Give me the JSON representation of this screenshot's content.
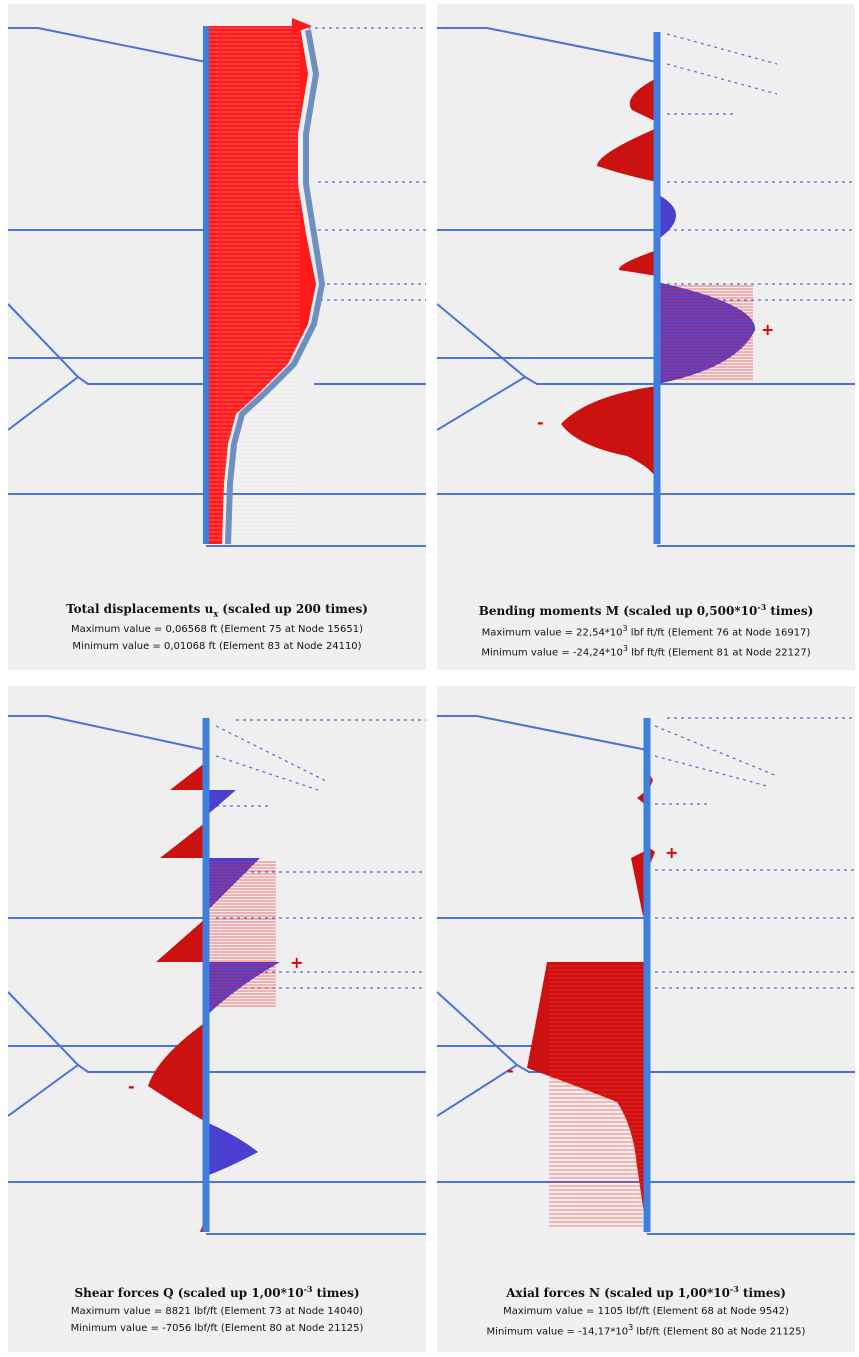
{
  "panels": [
    {
      "title_main": "Total displacements u",
      "title_sub": "x",
      "title_tail": " (scaled up 200 times)",
      "max_label": "Maximum value = 0,06568 ft (Element 75 at Node 15651)",
      "min_label": "Minimum value = 0,01068 ft (Element 83 at Node 24110)"
    },
    {
      "title_main": "Bending moments M (scaled up 0,500*10",
      "title_sup": "-3",
      "title_tail": " times)",
      "max_pre": "Maximum value = 22,54*10",
      "max_sup": "3",
      "max_post": " lbf ft/ft (Element 76 at Node 16917)",
      "min_pre": "Minimum value = -24,24*10",
      "min_sup": "3",
      "min_post": " lbf ft/ft (Element 81 at Node 22127)",
      "plus": "+",
      "minus": "-"
    },
    {
      "title_main": "Shear forces Q (scaled up 1,00*10",
      "title_sup": "-3",
      "title_tail": " times)",
      "max_label": "Maximum value = 8821 lbf/ft (Element 73 at Node 14040)",
      "min_label": "Minimum value = -7056 lbf/ft (Element 80 at Node 21125)",
      "plus": "+",
      "minus": "-"
    },
    {
      "title_main": "Axial forces N (scaled up 1,00*10",
      "title_sup": "-3",
      "title_tail": " times)",
      "max_label": "Maximum value = 1105 lbf/ft (Element 68 at Node 9542)",
      "min_pre": "Minimum value = -14,17*10",
      "min_sup": "3",
      "min_post": " lbf/ft (Element 80 at Node 21125)",
      "plus": "+",
      "minus": "-"
    }
  ],
  "colors": {
    "wall": "#3f7fe0",
    "boundary": "#4a72d8",
    "negative_fill": "#cc1111",
    "positive_fill": "#4a3fcf",
    "hatch": "#ff2a2a",
    "background": "#efefef"
  }
}
